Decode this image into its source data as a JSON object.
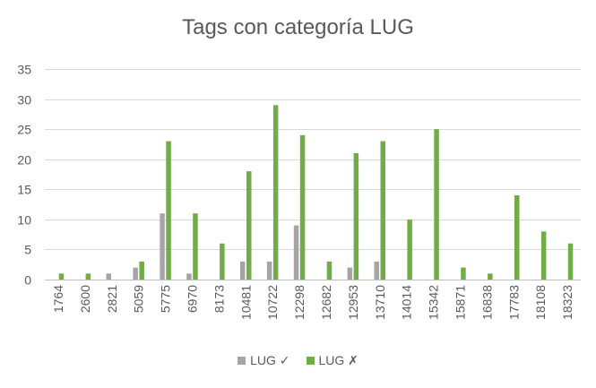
{
  "chart_data": {
    "type": "bar",
    "title": "Tags con categoría LUG",
    "xlabel": "",
    "ylabel": "",
    "categories": [
      "1764",
      "2600",
      "2821",
      "5059",
      "5775",
      "6970",
      "8173",
      "10481",
      "10722",
      "12298",
      "12682",
      "12953",
      "13710",
      "14014",
      "15342",
      "15871",
      "16838",
      "17783",
      "18108",
      "18323"
    ],
    "series": [
      {
        "name": "LUG ✓",
        "color": "#a5a5a5",
        "values": [
          0,
          0,
          1,
          2,
          11,
          1,
          0,
          3,
          3,
          9,
          0,
          2,
          3,
          0,
          0,
          0,
          0,
          0,
          0,
          0
        ]
      },
      {
        "name": "LUG ✗",
        "color": "#70ad47",
        "values": [
          1,
          1,
          0,
          3,
          23,
          11,
          6,
          18,
          29,
          24,
          3,
          21,
          23,
          10,
          25,
          2,
          1,
          14,
          8,
          6
        ]
      }
    ],
    "ylim": [
      0,
      35
    ],
    "yticks": [
      0,
      5,
      10,
      15,
      20,
      25,
      30,
      35
    ],
    "grid": true,
    "legend": "bottom"
  }
}
